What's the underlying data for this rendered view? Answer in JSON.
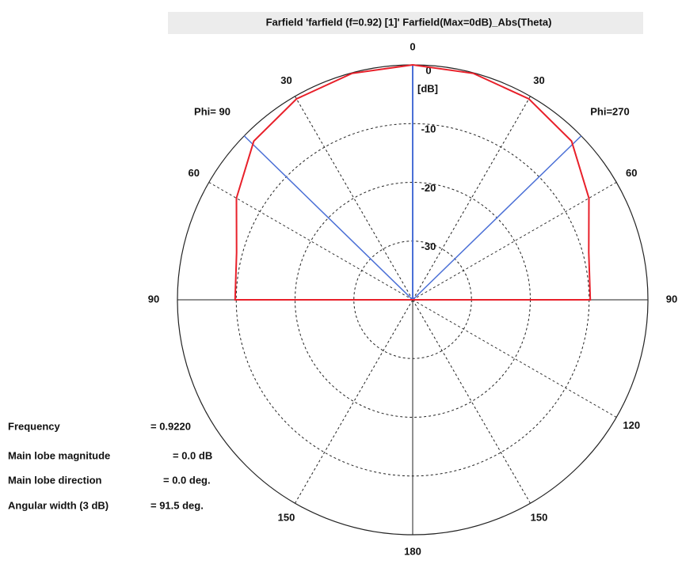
{
  "chart_data": {
    "type": "polar",
    "title": "Farfield 'farfield (f=0.92) [1]' Farfield(Max=0dB)_Abs(Theta)",
    "x": [
      -90,
      -75,
      -60,
      -45,
      -30,
      -15,
      0,
      15,
      30,
      45,
      60,
      75,
      90
    ],
    "values": [
      -9.8,
      -9.0,
      -5.4,
      -1.8,
      -0.5,
      -0.1,
      0,
      -0.1,
      -0.5,
      -1.8,
      -5.4,
      -9.0,
      -9.8
    ],
    "color": "#e8202a",
    "beam_lines": {
      "x": [
        -45.75,
        0,
        45.75
      ],
      "color": "#4a6fd6"
    },
    "rlim": [
      -40,
      0
    ],
    "rticks": [
      0,
      -10,
      -20,
      -30
    ],
    "r_label": "[dB]",
    "xticks": [
      0,
      30,
      60,
      90,
      120,
      150,
      180,
      {
        "value": -150,
        "label": "150"
      },
      {
        "value": -90,
        "label": "90"
      },
      {
        "value": -60,
        "label": "60"
      },
      {
        "value": -30,
        "label": "30"
      }
    ],
    "phi_labels": [
      "Phi= 90",
      "Phi=270"
    ],
    "info": [
      {
        "label": "Frequency",
        "value": "= 0.9220"
      },
      {
        "label": "Main lobe magnitude",
        "value": "=   0.0 dB"
      },
      {
        "label": "Main lobe direction",
        "value": "=   0.0 deg."
      },
      {
        "label": "Angular width (3 dB)",
        "value": "= 91.5 deg."
      }
    ]
  }
}
